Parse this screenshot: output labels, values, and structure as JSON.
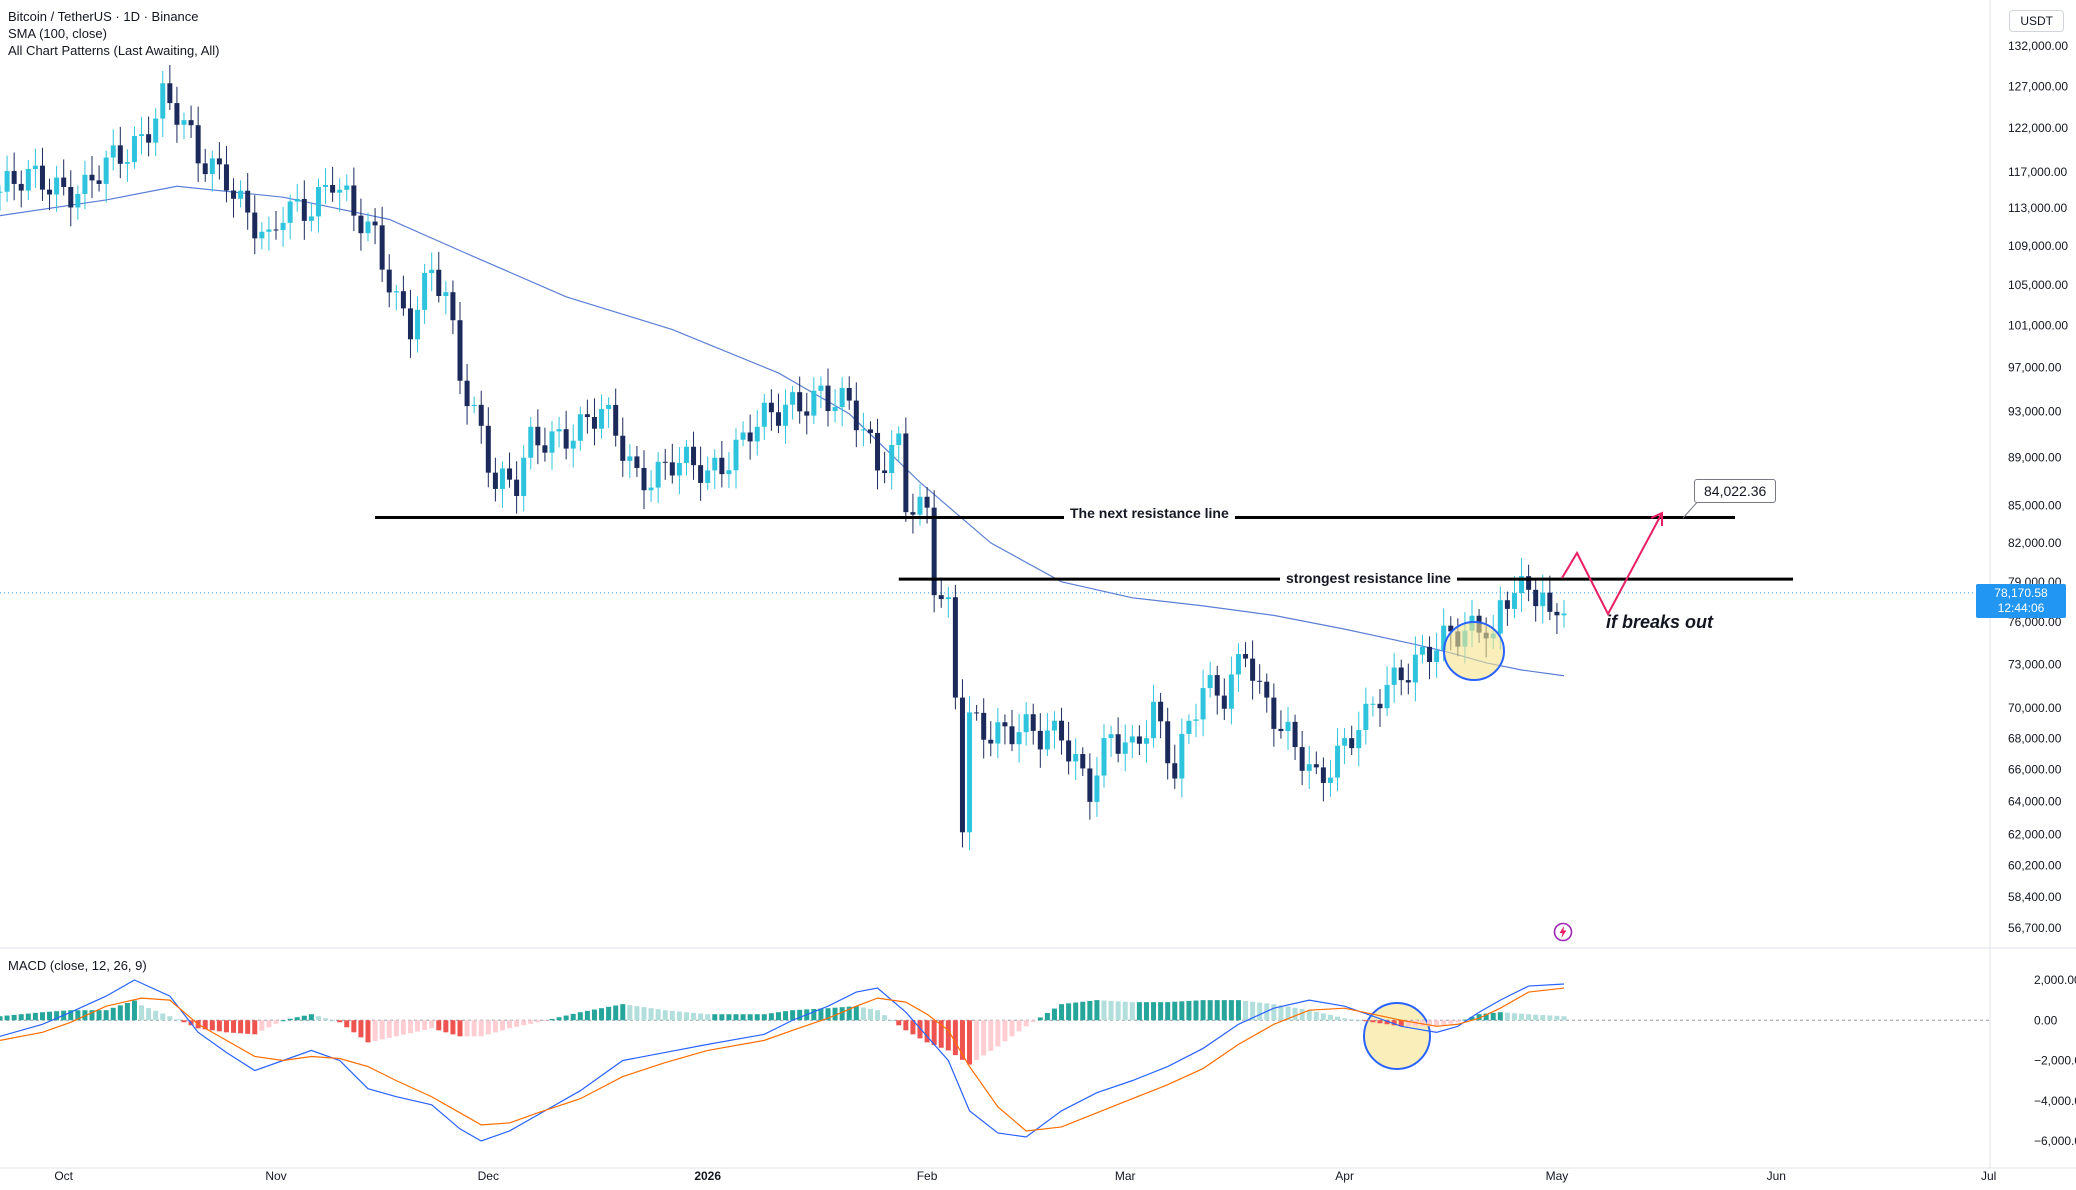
{
  "legend": {
    "symbol": "Bitcoin / TetherUS · 1D · Binance",
    "sma": "SMA (100, close)",
    "patterns": "All Chart Patterns (Last Awaiting, All)"
  },
  "macd_legend": "MACD (close, 12, 26, 9)",
  "currency": "USDT",
  "current_price": "78,170.58",
  "countdown": "12:44:06",
  "target_label": "84,022.36",
  "annotations": {
    "next_resistance": "The next resistance line",
    "strongest_resistance": "strongest resistance line",
    "breakout": "if breaks out"
  },
  "colors": {
    "up": "#26a69a",
    "up_candle": "#2ec4dd",
    "down": "#1b2a5b",
    "sma": "#5b7fd6",
    "macd": "#2962ff",
    "signal": "#ff6d00",
    "hist_up": "#26a69a",
    "hist_down": "#ef5350",
    "projection": "#e91e63",
    "price_tag": "#2196f3"
  },
  "icons": [
    "flash-icon"
  ],
  "chart_data": [
    {
      "type": "candlestick",
      "title": "Bitcoin / TetherUS · 1D · Binance",
      "y_scale": "log",
      "y_ticks": [
        132000,
        127000,
        122000,
        117000,
        113000,
        109000,
        105000,
        101000,
        97000,
        93000,
        89000,
        85000,
        82000,
        79000,
        76000,
        73000,
        70000,
        68000,
        66000,
        64000,
        62000,
        60200,
        58400,
        56700
      ],
      "y_tick_labels": [
        "132,000.00",
        "127,000.00",
        "122,000.00",
        "117,000.00",
        "113,000.00",
        "109,000.00",
        "105,000.00",
        "101,000.00",
        "97,000.00",
        "93,000.00",
        "89,000.00",
        "85,000.00",
        "82,000.00",
        "79,000.00",
        "76,000.00",
        "73,000.00",
        "70,000.00",
        "68,000.00",
        "66,000.00",
        "64,000.00",
        "62,000.00",
        "60,200.00",
        "58,400.00",
        "56,700.00"
      ],
      "x_ticks": [
        "Oct",
        "Nov",
        "Dec",
        "2026",
        "Feb",
        "Mar",
        "Apr",
        "May",
        "Jun",
        "Jul"
      ],
      "close_path": [
        [
          0,
          114800
        ],
        [
          6,
          116200
        ],
        [
          12,
          115000
        ],
        [
          17,
          118500
        ],
        [
          20,
          121300
        ],
        [
          23,
          126000
        ],
        [
          25,
          123500
        ],
        [
          28,
          118000
        ],
        [
          32,
          117200
        ],
        [
          35,
          112500
        ],
        [
          38,
          108400
        ],
        [
          40,
          112200
        ],
        [
          44,
          113900
        ],
        [
          47,
          116500
        ],
        [
          50,
          111600
        ],
        [
          53,
          109700
        ],
        [
          56,
          104000
        ],
        [
          58,
          101500
        ],
        [
          61,
          105900
        ],
        [
          63,
          103100
        ],
        [
          65,
          96400
        ],
        [
          68,
          91700
        ],
        [
          70,
          87200
        ],
        [
          73,
          86400
        ],
        [
          75,
          89800
        ],
        [
          80,
          91500
        ],
        [
          85,
          92600
        ],
        [
          90,
          87500
        ],
        [
          95,
          88600
        ],
        [
          100,
          87200
        ],
        [
          106,
          91800
        ],
        [
          110,
          92300
        ],
        [
          116,
          95200
        ],
        [
          120,
          93200
        ],
        [
          124,
          88100
        ],
        [
          127,
          90800
        ],
        [
          128,
          86000
        ],
        [
          131,
          84200
        ],
        [
          132,
          78600
        ],
        [
          133,
          77200
        ],
        [
          134,
          76200
        ],
        [
          135,
          70500
        ],
        [
          136,
          62900
        ],
        [
          137,
          69500
        ],
        [
          142,
          68400
        ],
        [
          147,
          67900
        ],
        [
          150,
          68800
        ],
        [
          154,
          64800
        ],
        [
          157,
          67600
        ],
        [
          160,
          67200
        ],
        [
          163,
          70400
        ],
        [
          166,
          65900
        ],
        [
          170,
          70900
        ],
        [
          173,
          71200
        ],
        [
          176,
          74600
        ],
        [
          178,
          70900
        ],
        [
          181,
          68100
        ],
        [
          184,
          66900
        ],
        [
          186,
          65800
        ],
        [
          190,
          67400
        ],
        [
          193,
          68800
        ],
        [
          195,
          70800
        ],
        [
          198,
          72900
        ],
        [
          201,
          73700
        ],
        [
          204,
          74200
        ],
        [
          207,
          75200
        ],
        [
          210,
          76400
        ],
        [
          211,
          75200
        ],
        [
          212,
          77200
        ],
        [
          214,
          78600
        ],
        [
          216,
          77400
        ],
        [
          218,
          77900
        ],
        [
          219,
          75600
        ],
        [
          221,
          78170
        ]
      ],
      "series": [
        {
          "name": "SMA (100, close)",
          "values": [
            [
              0,
              112200
            ],
            [
              15,
              113900
            ],
            [
              25,
              115400
            ],
            [
              40,
              114200
            ],
            [
              55,
              111800
            ],
            [
              65,
              108500
            ],
            [
              80,
              103800
            ],
            [
              95,
              100600
            ],
            [
              110,
              96500
            ],
            [
              120,
              92800
            ],
            [
              130,
              86900
            ],
            [
              140,
              82000
            ],
            [
              150,
              79000
            ],
            [
              160,
              77800
            ],
            [
              170,
              77200
            ],
            [
              180,
              76500
            ],
            [
              190,
              75500
            ],
            [
              200,
              74400
            ],
            [
              205,
              73800
            ],
            [
              210,
              73100
            ],
            [
              215,
              72600
            ],
            [
              221,
              72200
            ]
          ]
        }
      ],
      "annotations": [
        {
          "text": "The next resistance line",
          "value": 84022.36
        },
        {
          "text": "strongest resistance line",
          "value": 79200
        },
        {
          "text": "if breaks out"
        },
        {
          "text": "84,022.36"
        }
      ]
    },
    {
      "type": "line",
      "title": "MACD (close, 12, 26, 9)",
      "y_ticks": [
        2000,
        0,
        -2000,
        -4000,
        -6000
      ],
      "y_tick_labels": [
        "2,000.00",
        "0.00",
        "−2,000.00",
        "−4,000.00",
        "−6,000.00"
      ],
      "series": [
        {
          "name": "MACD",
          "values": [
            [
              0,
              -800
            ],
            [
              6,
              -200
            ],
            [
              10,
              400
            ],
            [
              15,
              1200
            ],
            [
              19,
              2000
            ],
            [
              24,
              1200
            ],
            [
              28,
              -600
            ],
            [
              32,
              -1600
            ],
            [
              36,
              -2500
            ],
            [
              40,
              -2000
            ],
            [
              44,
              -1500
            ],
            [
              48,
              -2000
            ],
            [
              52,
              -3400
            ],
            [
              56,
              -3800
            ],
            [
              61,
              -4200
            ],
            [
              65,
              -5400
            ],
            [
              68,
              -6000
            ],
            [
              72,
              -5500
            ],
            [
              76,
              -4700
            ],
            [
              82,
              -3500
            ],
            [
              88,
              -2000
            ],
            [
              94,
              -1600
            ],
            [
              100,
              -1200
            ],
            [
              108,
              -700
            ],
            [
              112,
              0
            ],
            [
              117,
              700
            ],
            [
              121,
              1400
            ],
            [
              124,
              1600
            ],
            [
              128,
              400
            ],
            [
              131,
              -800
            ],
            [
              134,
              -2000
            ],
            [
              137,
              -4500
            ],
            [
              141,
              -5600
            ],
            [
              145,
              -5800
            ],
            [
              150,
              -4500
            ],
            [
              155,
              -3600
            ],
            [
              160,
              -3000
            ],
            [
              165,
              -2300
            ],
            [
              170,
              -1400
            ],
            [
              175,
              -200
            ],
            [
              180,
              600
            ],
            [
              185,
              1000
            ],
            [
              190,
              700
            ],
            [
              194,
              200
            ],
            [
              198,
              -300
            ],
            [
              203,
              -600
            ],
            [
              206,
              -300
            ],
            [
              209,
              400
            ],
            [
              212,
              1000
            ],
            [
              216,
              1700
            ],
            [
              221,
              1800
            ]
          ]
        },
        {
          "name": "Signal",
          "values": [
            [
              0,
              -1000
            ],
            [
              6,
              -600
            ],
            [
              10,
              -100
            ],
            [
              15,
              700
            ],
            [
              20,
              1100
            ],
            [
              24,
              1000
            ],
            [
              28,
              -200
            ],
            [
              32,
              -1000
            ],
            [
              36,
              -1800
            ],
            [
              40,
              -2000
            ],
            [
              44,
              -1800
            ],
            [
              48,
              -1900
            ],
            [
              52,
              -2300
            ],
            [
              56,
              -3000
            ],
            [
              61,
              -3800
            ],
            [
              65,
              -4600
            ],
            [
              68,
              -5200
            ],
            [
              72,
              -5100
            ],
            [
              76,
              -4600
            ],
            [
              82,
              -3900
            ],
            [
              88,
              -2800
            ],
            [
              94,
              -2100
            ],
            [
              100,
              -1500
            ],
            [
              108,
              -1000
            ],
            [
              112,
              -500
            ],
            [
              117,
              100
            ],
            [
              121,
              700
            ],
            [
              124,
              1100
            ],
            [
              128,
              900
            ],
            [
              131,
              300
            ],
            [
              134,
              -500
            ],
            [
              137,
              -2300
            ],
            [
              141,
              -4300
            ],
            [
              145,
              -5500
            ],
            [
              150,
              -5300
            ],
            [
              155,
              -4600
            ],
            [
              160,
              -3900
            ],
            [
              165,
              -3200
            ],
            [
              170,
              -2400
            ],
            [
              175,
              -1200
            ],
            [
              180,
              -200
            ],
            [
              185,
              500
            ],
            [
              190,
              600
            ],
            [
              194,
              300
            ],
            [
              198,
              0
            ],
            [
              203,
              -300
            ],
            [
              206,
              -200
            ],
            [
              209,
              100
            ],
            [
              212,
              600
            ],
            [
              216,
              1400
            ],
            [
              221,
              1600
            ]
          ]
        }
      ]
    }
  ]
}
